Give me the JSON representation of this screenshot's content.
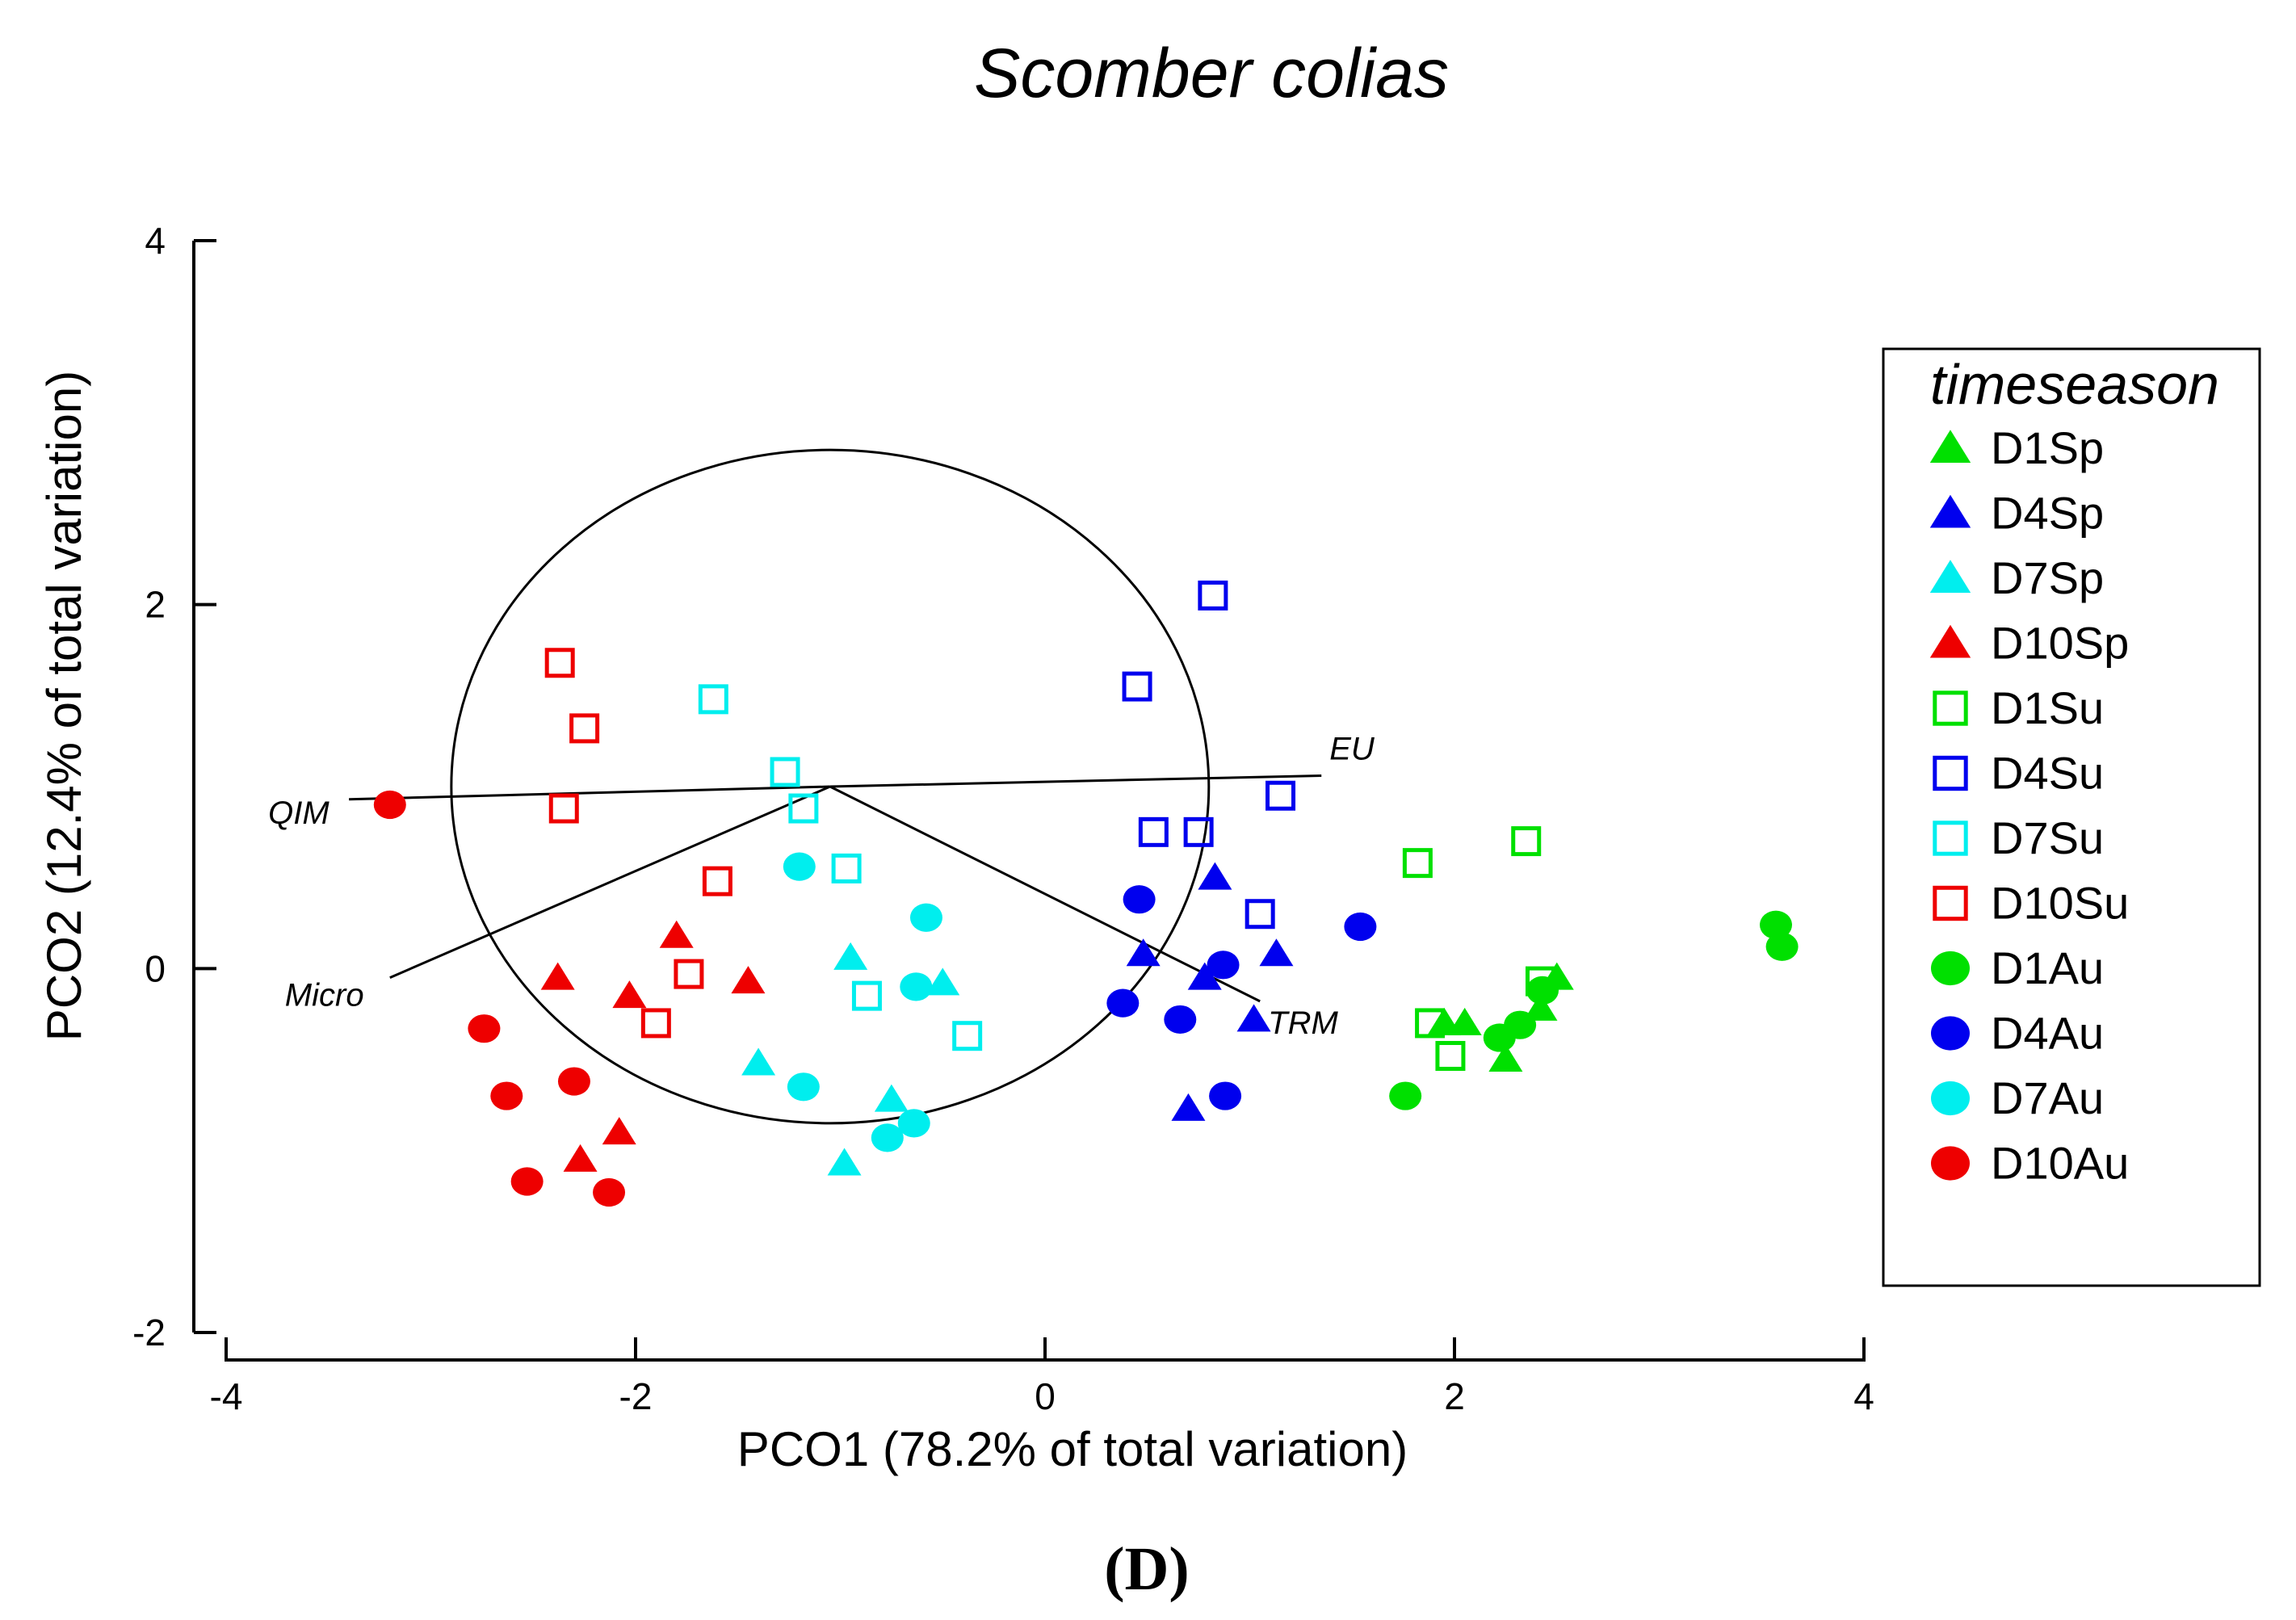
{
  "chart_data": {
    "type": "scatter",
    "title": "Scomber colias",
    "xlabel": "PCO1 (78.2% of total variation)",
    "ylabel": "PCO2 (12.4% of total variation)",
    "xlim": [
      -4,
      4
    ],
    "ylim": [
      -2,
      4
    ],
    "xticks": [
      -4,
      -2,
      0,
      2,
      4
    ],
    "yticks": [
      -2,
      0,
      2,
      4
    ],
    "xtick_labels": [
      "-4",
      "-2",
      "0",
      "2",
      "4"
    ],
    "ytick_labels": [
      "-2",
      "0",
      "2",
      "4"
    ],
    "panel_label": "(D)",
    "legend": {
      "title": "timeseason",
      "position": "right"
    },
    "correlation_circle": {
      "center": [
        -1.05,
        1.0
      ],
      "radius": 1.85
    },
    "vectors": [
      {
        "label": "QIM",
        "to": [
          -3.4,
          0.93
        ]
      },
      {
        "label": "EU",
        "to": [
          1.35,
          1.06
        ]
      },
      {
        "label": "Micro",
        "to": [
          -3.2,
          -0.05
        ]
      },
      {
        "label": "TRM",
        "to": [
          1.05,
          -0.18
        ]
      }
    ],
    "series": [
      {
        "name": "D1Sp",
        "color": "#00e000",
        "marker": "triangle",
        "points": [
          [
            1.95,
            -0.3
          ],
          [
            2.05,
            -0.3
          ],
          [
            2.25,
            -0.5
          ],
          [
            2.42,
            -0.22
          ],
          [
            2.5,
            -0.05
          ]
        ]
      },
      {
        "name": "D4Sp",
        "color": "#0000ee",
        "marker": "triangle",
        "points": [
          [
            0.48,
            0.08
          ],
          [
            0.83,
            0.5
          ],
          [
            0.78,
            -0.05
          ],
          [
            1.13,
            0.08
          ],
          [
            1.02,
            -0.28
          ],
          [
            0.7,
            -0.77
          ]
        ]
      },
      {
        "name": "D7Sp",
        "color": "#00eeee",
        "marker": "triangle",
        "points": [
          [
            -0.95,
            0.06
          ],
          [
            -0.5,
            -0.08
          ],
          [
            -1.4,
            -0.52
          ],
          [
            -0.75,
            -0.72
          ],
          [
            -0.98,
            -1.07
          ]
        ]
      },
      {
        "name": "D10Sp",
        "color": "#ee0000",
        "marker": "triangle",
        "points": [
          [
            -2.38,
            -0.05
          ],
          [
            -2.03,
            -0.15
          ],
          [
            -1.8,
            0.18
          ],
          [
            -1.45,
            -0.07
          ],
          [
            -2.08,
            -0.9
          ],
          [
            -2.27,
            -1.05
          ]
        ]
      },
      {
        "name": "D1Su",
        "color": "#00e000",
        "marker": "square",
        "points": [
          [
            1.82,
            0.58
          ],
          [
            2.35,
            0.7
          ],
          [
            1.88,
            -0.3
          ],
          [
            1.98,
            -0.48
          ],
          [
            2.42,
            -0.07
          ]
        ]
      },
      {
        "name": "D4Su",
        "color": "#0000ee",
        "marker": "square",
        "points": [
          [
            0.82,
            2.05
          ],
          [
            0.45,
            1.55
          ],
          [
            1.15,
            0.95
          ],
          [
            0.53,
            0.75
          ],
          [
            0.75,
            0.75
          ],
          [
            1.05,
            0.3
          ]
        ]
      },
      {
        "name": "D7Su",
        "color": "#00eeee",
        "marker": "square",
        "points": [
          [
            -1.62,
            1.48
          ],
          [
            -1.27,
            1.08
          ],
          [
            -1.18,
            0.88
          ],
          [
            -0.97,
            0.55
          ],
          [
            -0.87,
            -0.15
          ],
          [
            -0.38,
            -0.37
          ]
        ]
      },
      {
        "name": "D10Su",
        "color": "#ee0000",
        "marker": "square",
        "points": [
          [
            -2.37,
            1.68
          ],
          [
            -2.25,
            1.32
          ],
          [
            -2.35,
            0.88
          ],
          [
            -1.6,
            0.48
          ],
          [
            -1.74,
            -0.03
          ],
          [
            -1.9,
            -0.3
          ]
        ]
      },
      {
        "name": "D1Au",
        "color": "#00e000",
        "marker": "circle",
        "points": [
          [
            3.57,
            0.24
          ],
          [
            3.6,
            0.12
          ],
          [
            1.76,
            -0.7
          ],
          [
            2.32,
            -0.31
          ],
          [
            2.22,
            -0.38
          ],
          [
            2.43,
            -0.12
          ]
        ]
      },
      {
        "name": "D4Au",
        "color": "#0000ee",
        "marker": "circle",
        "points": [
          [
            1.54,
            0.23
          ],
          [
            0.46,
            0.38
          ],
          [
            0.87,
            0.02
          ],
          [
            0.38,
            -0.19
          ],
          [
            0.66,
            -0.28
          ],
          [
            0.88,
            -0.7
          ]
        ]
      },
      {
        "name": "D7Au",
        "color": "#00eeee",
        "marker": "circle",
        "points": [
          [
            -1.2,
            0.56
          ],
          [
            -0.58,
            0.28
          ],
          [
            -0.63,
            -0.1
          ],
          [
            -1.18,
            -0.65
          ],
          [
            -0.64,
            -0.85
          ],
          [
            -0.77,
            -0.93
          ]
        ]
      },
      {
        "name": "D10Au",
        "color": "#ee0000",
        "marker": "circle",
        "points": [
          [
            -3.2,
            0.9
          ],
          [
            -2.74,
            -0.33
          ],
          [
            -2.3,
            -0.62
          ],
          [
            -2.63,
            -0.7
          ],
          [
            -2.53,
            -1.17
          ],
          [
            -2.13,
            -1.23
          ]
        ]
      }
    ]
  }
}
